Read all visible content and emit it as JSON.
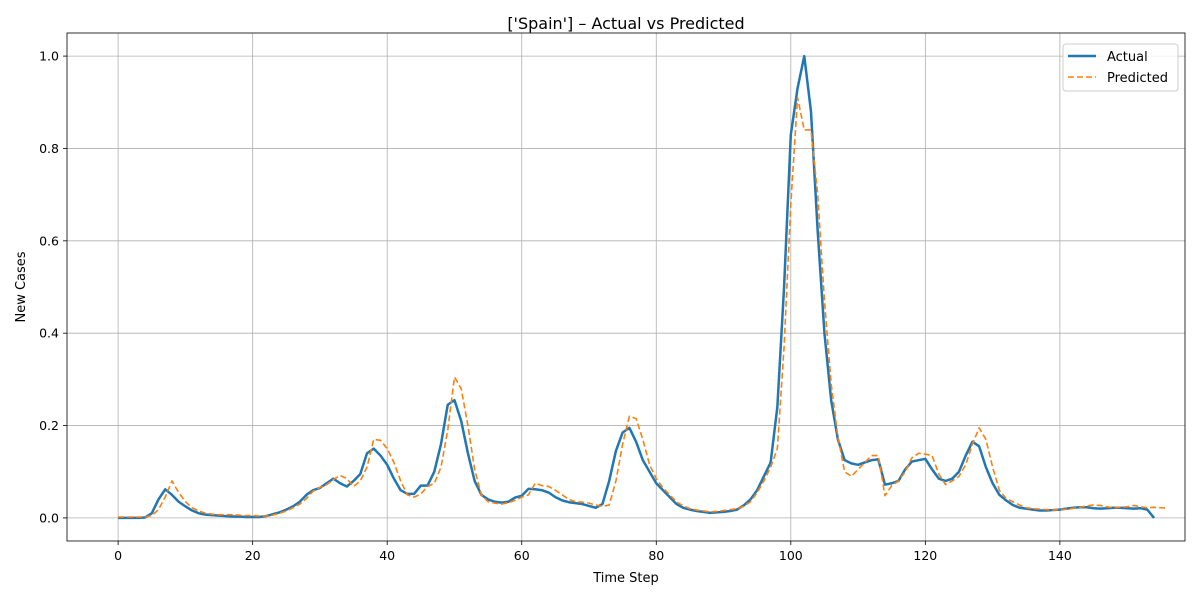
{
  "chart_data": {
    "type": "line",
    "title": "['Spain'] – Actual vs Predicted",
    "xlabel": "Time Step",
    "ylabel": "New Cases",
    "xlim": [
      -7.6,
      158.6
    ],
    "ylim": [
      -0.05,
      1.05
    ],
    "x_ticks": [
      0,
      20,
      40,
      60,
      80,
      100,
      120,
      140
    ],
    "y_ticks": [
      0.0,
      0.2,
      0.4,
      0.6,
      0.8,
      1.0
    ],
    "x_tick_labels": [
      "0",
      "20",
      "40",
      "60",
      "80",
      "100",
      "120",
      "140"
    ],
    "y_tick_labels": [
      "0.0",
      "0.2",
      "0.4",
      "0.6",
      "0.8",
      "1.0"
    ],
    "grid": true,
    "legend_position": "top-right",
    "series": [
      {
        "name": "Actual",
        "color": "#1f77b4",
        "style": "solid",
        "values": [
          0.0,
          0.0,
          0.0,
          0.0,
          0.001,
          0.01,
          0.04,
          0.062,
          0.05,
          0.035,
          0.025,
          0.016,
          0.01,
          0.007,
          0.006,
          0.005,
          0.004,
          0.003,
          0.003,
          0.002,
          0.002,
          0.002,
          0.004,
          0.008,
          0.012,
          0.018,
          0.025,
          0.035,
          0.05,
          0.06,
          0.065,
          0.075,
          0.085,
          0.075,
          0.068,
          0.08,
          0.095,
          0.14,
          0.15,
          0.135,
          0.115,
          0.085,
          0.06,
          0.052,
          0.052,
          0.07,
          0.07,
          0.1,
          0.16,
          0.245,
          0.255,
          0.21,
          0.14,
          0.08,
          0.05,
          0.04,
          0.035,
          0.033,
          0.035,
          0.044,
          0.048,
          0.063,
          0.062,
          0.06,
          0.055,
          0.045,
          0.038,
          0.034,
          0.032,
          0.03,
          0.026,
          0.022,
          0.03,
          0.08,
          0.145,
          0.185,
          0.195,
          0.165,
          0.125,
          0.1,
          0.075,
          0.06,
          0.045,
          0.03,
          0.022,
          0.018,
          0.015,
          0.013,
          0.011,
          0.012,
          0.013,
          0.015,
          0.018,
          0.027,
          0.04,
          0.06,
          0.09,
          0.12,
          0.24,
          0.5,
          0.83,
          0.93,
          1.0,
          0.88,
          0.62,
          0.4,
          0.255,
          0.17,
          0.125,
          0.118,
          0.115,
          0.12,
          0.125,
          0.127,
          0.072,
          0.075,
          0.08,
          0.105,
          0.122,
          0.125,
          0.128,
          0.105,
          0.085,
          0.08,
          0.085,
          0.1,
          0.135,
          0.165,
          0.155,
          0.11,
          0.075,
          0.05,
          0.038,
          0.028,
          0.022,
          0.02,
          0.018,
          0.016,
          0.016,
          0.017,
          0.018,
          0.02,
          0.022,
          0.023,
          0.023,
          0.021,
          0.02,
          0.021,
          0.022,
          0.022,
          0.021,
          0.02,
          0.021,
          0.018,
          0.0
        ]
      },
      {
        "name": "Predicted",
        "color": "#ff7f0e",
        "style": "dashed",
        "values": [
          0.002,
          0.002,
          0.002,
          0.002,
          0.002,
          0.005,
          0.018,
          0.045,
          0.08,
          0.055,
          0.035,
          0.022,
          0.015,
          0.01,
          0.008,
          0.007,
          0.007,
          0.007,
          0.006,
          0.005,
          0.005,
          0.004,
          0.004,
          0.006,
          0.01,
          0.015,
          0.022,
          0.03,
          0.042,
          0.058,
          0.066,
          0.072,
          0.083,
          0.092,
          0.085,
          0.068,
          0.08,
          0.11,
          0.17,
          0.168,
          0.15,
          0.12,
          0.08,
          0.05,
          0.045,
          0.052,
          0.068,
          0.075,
          0.11,
          0.19,
          0.305,
          0.28,
          0.2,
          0.105,
          0.05,
          0.035,
          0.032,
          0.03,
          0.033,
          0.038,
          0.045,
          0.05,
          0.075,
          0.07,
          0.068,
          0.06,
          0.05,
          0.04,
          0.035,
          0.034,
          0.032,
          0.028,
          0.025,
          0.028,
          0.08,
          0.16,
          0.22,
          0.215,
          0.17,
          0.115,
          0.085,
          0.065,
          0.05,
          0.035,
          0.026,
          0.02,
          0.017,
          0.015,
          0.013,
          0.014,
          0.016,
          0.018,
          0.02,
          0.025,
          0.035,
          0.055,
          0.08,
          0.11,
          0.15,
          0.37,
          0.68,
          0.91,
          0.84,
          0.84,
          0.7,
          0.47,
          0.29,
          0.175,
          0.1,
          0.09,
          0.105,
          0.12,
          0.135,
          0.135,
          0.048,
          0.07,
          0.08,
          0.1,
          0.13,
          0.14,
          0.138,
          0.135,
          0.095,
          0.072,
          0.08,
          0.09,
          0.115,
          0.16,
          0.195,
          0.17,
          0.11,
          0.06,
          0.042,
          0.035,
          0.028,
          0.022,
          0.02,
          0.019,
          0.018,
          0.017,
          0.018,
          0.019,
          0.021,
          0.023,
          0.026,
          0.028,
          0.027,
          0.024,
          0.022,
          0.023,
          0.024,
          0.027,
          0.024,
          0.022,
          0.023,
          0.022,
          0.021
        ]
      }
    ]
  }
}
